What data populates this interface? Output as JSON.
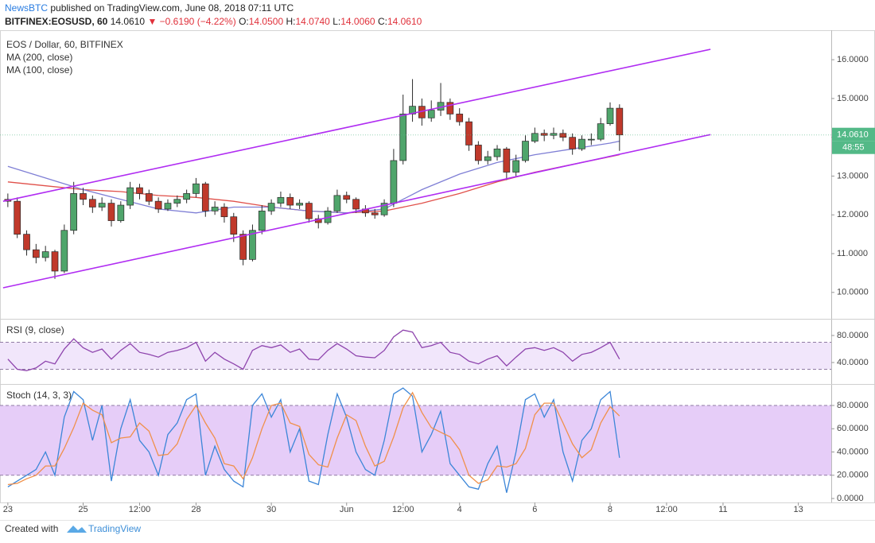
{
  "header": {
    "publisher": "NewsBTC",
    "published": "published on TradingView.com, June 08, 2018 07:11 UTC",
    "symbol": "BITFINEX:EOSUSD, 60",
    "price": "14.0610",
    "change": "▼ −0.6190 (−4.22%)",
    "ohlc": [
      {
        "label": "O:",
        "value": "14.0500"
      },
      {
        "label": "H:",
        "value": "14.0740"
      },
      {
        "label": "L:",
        "value": "14.0060"
      },
      {
        "label": "C:",
        "value": "14.0610"
      }
    ]
  },
  "footer": {
    "created_with": "Created with",
    "brand": "TradingView"
  },
  "chart_data": [
    {
      "type": "candlestick",
      "title": "EOS / Dollar, 60, BITFINEX",
      "x": [
        "2018-05-23T00:00",
        "2018-05-23T06:00",
        "2018-05-23T12:00",
        "2018-05-23T18:00",
        "2018-05-24T00:00",
        "2018-05-24T06:00",
        "2018-05-24T12:00",
        "2018-05-24T18:00",
        "2018-05-25T00:00",
        "2018-05-25T06:00",
        "2018-05-25T12:00",
        "2018-05-25T18:00",
        "2018-05-26T00:00",
        "2018-05-26T06:00",
        "2018-05-26T12:00",
        "2018-05-26T18:00",
        "2018-05-27T00:00",
        "2018-05-27T06:00",
        "2018-05-27T12:00",
        "2018-05-27T18:00",
        "2018-05-28T00:00",
        "2018-05-28T06:00",
        "2018-05-28T12:00",
        "2018-05-28T18:00",
        "2018-05-29T00:00",
        "2018-05-29T06:00",
        "2018-05-29T12:00",
        "2018-05-29T18:00",
        "2018-05-30T00:00",
        "2018-05-30T06:00",
        "2018-05-30T12:00",
        "2018-05-30T18:00",
        "2018-05-31T00:00",
        "2018-05-31T06:00",
        "2018-05-31T12:00",
        "2018-05-31T18:00",
        "2018-06-01T00:00",
        "2018-06-01T06:00",
        "2018-06-01T12:00",
        "2018-06-01T18:00",
        "2018-06-02T00:00",
        "2018-06-02T06:00",
        "2018-06-02T12:00",
        "2018-06-02T18:00",
        "2018-06-03T00:00",
        "2018-06-03T06:00",
        "2018-06-03T12:00",
        "2018-06-03T18:00",
        "2018-06-04T00:00",
        "2018-06-04T06:00",
        "2018-06-04T12:00",
        "2018-06-04T18:00",
        "2018-06-05T00:00",
        "2018-06-05T06:00",
        "2018-06-05T12:00",
        "2018-06-05T18:00",
        "2018-06-06T00:00",
        "2018-06-06T06:00",
        "2018-06-06T12:00",
        "2018-06-06T18:00",
        "2018-06-07T00:00",
        "2018-06-07T06:00",
        "2018-06-07T12:00",
        "2018-06-07T18:00",
        "2018-06-08T00:00",
        "2018-06-08T06:00"
      ],
      "open": [
        12.4,
        12.35,
        11.5,
        11.1,
        10.9,
        11.05,
        10.55,
        11.6,
        12.55,
        12.4,
        12.2,
        12.3,
        11.85,
        12.25,
        12.7,
        12.55,
        12.35,
        12.15,
        12.3,
        12.4,
        12.55,
        12.8,
        12.1,
        12.2,
        11.95,
        11.5,
        10.85,
        11.6,
        12.1,
        12.3,
        12.45,
        12.25,
        12.3,
        11.9,
        11.8,
        12.1,
        12.5,
        12.4,
        12.15,
        12.05,
        12.0,
        12.3,
        13.4,
        14.6,
        14.8,
        14.5,
        14.7,
        14.9,
        14.6,
        14.4,
        13.8,
        13.4,
        13.5,
        13.7,
        13.1,
        13.4,
        13.9,
        14.1,
        14.05,
        14.1,
        14.0,
        13.7,
        13.95,
        13.95,
        14.35,
        14.75
      ],
      "high": [
        12.55,
        12.45,
        11.6,
        11.25,
        11.2,
        11.1,
        11.75,
        12.85,
        12.7,
        12.5,
        12.45,
        12.4,
        12.35,
        12.85,
        12.8,
        12.65,
        12.45,
        12.4,
        12.5,
        12.65,
        12.95,
        12.85,
        12.35,
        12.3,
        12.05,
        11.6,
        11.75,
        12.25,
        12.4,
        12.6,
        12.55,
        12.4,
        12.35,
        12.0,
        12.2,
        12.65,
        12.6,
        12.45,
        12.25,
        12.15,
        12.4,
        13.7,
        15.1,
        15.5,
        15.0,
        14.95,
        15.4,
        15.0,
        14.75,
        14.5,
        13.9,
        13.65,
        13.8,
        13.75,
        13.55,
        14.05,
        14.25,
        14.2,
        14.25,
        14.2,
        14.1,
        14.05,
        14.1,
        14.5,
        14.9,
        14.85
      ],
      "low": [
        12.2,
        11.4,
        10.95,
        10.75,
        10.8,
        10.35,
        10.5,
        11.5,
        12.25,
        12.05,
        12.1,
        11.7,
        11.8,
        12.15,
        12.4,
        12.25,
        12.05,
        12.1,
        12.2,
        12.3,
        12.45,
        11.95,
        12.0,
        11.8,
        11.3,
        10.7,
        10.8,
        11.5,
        12.0,
        12.2,
        12.15,
        12.15,
        11.8,
        11.65,
        11.75,
        12.05,
        12.3,
        12.05,
        11.95,
        11.9,
        11.95,
        12.2,
        13.3,
        14.4,
        14.3,
        14.4,
        14.55,
        14.45,
        14.3,
        13.65,
        13.3,
        13.3,
        13.4,
        12.9,
        13.0,
        13.35,
        13.85,
        13.9,
        13.95,
        13.9,
        13.55,
        13.65,
        13.8,
        13.9,
        14.3,
        13.65
      ],
      "close": [
        12.35,
        11.5,
        11.1,
        10.9,
        11.05,
        10.55,
        11.6,
        12.55,
        12.4,
        12.2,
        12.3,
        11.85,
        12.25,
        12.7,
        12.55,
        12.35,
        12.15,
        12.3,
        12.4,
        12.55,
        12.8,
        12.1,
        12.2,
        11.95,
        11.5,
        10.85,
        11.6,
        12.1,
        12.3,
        12.45,
        12.25,
        12.3,
        11.9,
        11.8,
        12.1,
        12.5,
        12.4,
        12.15,
        12.05,
        12.0,
        12.3,
        13.4,
        14.6,
        14.8,
        14.5,
        14.7,
        14.9,
        14.6,
        14.4,
        13.8,
        13.4,
        13.5,
        13.7,
        13.1,
        13.4,
        13.9,
        14.1,
        14.05,
        14.1,
        14.0,
        13.7,
        13.95,
        13.95,
        14.35,
        14.75,
        14.061
      ],
      "up_color": "#4fa56b",
      "down_color": "#c0392b",
      "series": [
        {
          "name": "MA (200, close)",
          "color": "#e0504a",
          "x": [
            "2018-05-23T00:00",
            "2018-05-24T00:00",
            "2018-05-25T00:00",
            "2018-05-26T00:00",
            "2018-05-27T00:00",
            "2018-05-28T00:00",
            "2018-05-29T00:00",
            "2018-05-30T00:00",
            "2018-05-31T00:00",
            "2018-06-01T00:00",
            "2018-06-02T00:00",
            "2018-06-03T00:00",
            "2018-06-04T00:00",
            "2018-06-05T00:00",
            "2018-06-06T00:00",
            "2018-06-07T00:00",
            "2018-06-08T00:00",
            "2018-06-08T06:00"
          ],
          "values": [
            12.85,
            12.75,
            12.65,
            12.6,
            12.5,
            12.45,
            12.35,
            12.2,
            12.1,
            12.05,
            12.1,
            12.3,
            12.55,
            12.85,
            13.1,
            13.3,
            13.5,
            13.55
          ]
        },
        {
          "name": "MA (100, close)",
          "color": "#7f7fd5",
          "x": [
            "2018-05-23T00:00",
            "2018-05-24T00:00",
            "2018-05-25T00:00",
            "2018-05-26T00:00",
            "2018-05-27T00:00",
            "2018-05-28T00:00",
            "2018-05-29T00:00",
            "2018-05-30T00:00",
            "2018-05-31T00:00",
            "2018-06-01T00:00",
            "2018-06-02T00:00",
            "2018-06-03T00:00",
            "2018-06-04T00:00",
            "2018-06-05T00:00",
            "2018-06-06T00:00",
            "2018-06-07T00:00",
            "2018-06-08T00:00",
            "2018-06-08T06:00"
          ],
          "values": [
            13.25,
            12.95,
            12.65,
            12.4,
            12.15,
            12.05,
            12.2,
            12.2,
            12.1,
            12.05,
            12.15,
            12.65,
            13.05,
            13.35,
            13.55,
            13.7,
            13.85,
            13.9
          ]
        }
      ],
      "channels": [
        {
          "color": "#b02cf2",
          "x": [
            "2018-05-22T21:00",
            "2018-06-10T16:00"
          ],
          "values": [
            12.35,
            16.27
          ]
        },
        {
          "color": "#b02cf2",
          "x": [
            "2018-05-22T21:00",
            "2018-06-10T16:00"
          ],
          "values": [
            10.12,
            14.07
          ]
        }
      ],
      "last_price": {
        "value": 14.061,
        "label": "14.0610"
      },
      "countdown": "48:55",
      "label_color": "#53b987",
      "xlim": [
        "2018-05-22T19:00",
        "2018-06-13T21:00"
      ],
      "ylim": [
        9.34,
        16.72
      ],
      "yticks": [
        {
          "value": 10,
          "label": "10.0000"
        },
        {
          "value": 11,
          "label": "11.0000"
        },
        {
          "value": 12,
          "label": "12.0000"
        },
        {
          "value": 13,
          "label": "13.0000"
        },
        {
          "value": 14,
          "label": "14.0000"
        },
        {
          "value": 15,
          "label": "15.0000"
        },
        {
          "value": 16,
          "label": "16.0000"
        }
      ]
    },
    {
      "type": "line",
      "title": "RSI (9, close)",
      "x": [
        "2018-05-23T00:00",
        "2018-05-23T06:00",
        "2018-05-23T12:00",
        "2018-05-23T18:00",
        "2018-05-24T00:00",
        "2018-05-24T06:00",
        "2018-05-24T12:00",
        "2018-05-24T18:00",
        "2018-05-25T00:00",
        "2018-05-25T06:00",
        "2018-05-25T12:00",
        "2018-05-25T18:00",
        "2018-05-26T00:00",
        "2018-05-26T06:00",
        "2018-05-26T12:00",
        "2018-05-26T18:00",
        "2018-05-27T00:00",
        "2018-05-27T06:00",
        "2018-05-27T12:00",
        "2018-05-27T18:00",
        "2018-05-28T00:00",
        "2018-05-28T06:00",
        "2018-05-28T12:00",
        "2018-05-28T18:00",
        "2018-05-29T00:00",
        "2018-05-29T06:00",
        "2018-05-29T12:00",
        "2018-05-29T18:00",
        "2018-05-30T00:00",
        "2018-05-30T06:00",
        "2018-05-30T12:00",
        "2018-05-30T18:00",
        "2018-05-31T00:00",
        "2018-05-31T06:00",
        "2018-05-31T12:00",
        "2018-05-31T18:00",
        "2018-06-01T00:00",
        "2018-06-01T06:00",
        "2018-06-01T12:00",
        "2018-06-01T18:00",
        "2018-06-02T00:00",
        "2018-06-02T06:00",
        "2018-06-02T12:00",
        "2018-06-02T18:00",
        "2018-06-03T00:00",
        "2018-06-03T06:00",
        "2018-06-03T12:00",
        "2018-06-03T18:00",
        "2018-06-04T00:00",
        "2018-06-04T06:00",
        "2018-06-04T12:00",
        "2018-06-04T18:00",
        "2018-06-05T00:00",
        "2018-06-05T06:00",
        "2018-06-05T12:00",
        "2018-06-05T18:00",
        "2018-06-06T00:00",
        "2018-06-06T06:00",
        "2018-06-06T12:00",
        "2018-06-06T18:00",
        "2018-06-07T00:00",
        "2018-06-07T06:00",
        "2018-06-07T12:00",
        "2018-06-07T18:00",
        "2018-06-08T00:00",
        "2018-06-08T06:00"
      ],
      "series": [
        {
          "color": "#8e44ad",
          "values": [
            45,
            30,
            28,
            32,
            42,
            38,
            60,
            75,
            62,
            55,
            60,
            45,
            58,
            68,
            55,
            52,
            48,
            55,
            58,
            62,
            70,
            42,
            55,
            45,
            38,
            30,
            58,
            65,
            62,
            66,
            55,
            60,
            45,
            44,
            58,
            68,
            60,
            50,
            48,
            47,
            58,
            78,
            88,
            85,
            62,
            65,
            70,
            55,
            52,
            42,
            38,
            45,
            50,
            35,
            48,
            60,
            62,
            58,
            62,
            55,
            42,
            52,
            55,
            62,
            70,
            45
          ]
        }
      ],
      "band": [
        30,
        70
      ],
      "band_color": "#f1e6fb",
      "xlim": [
        "2018-05-22T19:00",
        "2018-06-13T21:00"
      ],
      "ylim": [
        9.4,
        103.5
      ],
      "yticks": [
        {
          "value": 40,
          "label": "40.0000"
        },
        {
          "value": 80,
          "label": "80.0000"
        }
      ]
    },
    {
      "type": "line",
      "title": "Stoch (14, 3, 3)",
      "x": [
        "2018-05-23T00:00",
        "2018-05-23T06:00",
        "2018-05-23T12:00",
        "2018-05-23T18:00",
        "2018-05-24T00:00",
        "2018-05-24T06:00",
        "2018-05-24T12:00",
        "2018-05-24T18:00",
        "2018-05-25T00:00",
        "2018-05-25T06:00",
        "2018-05-25T12:00",
        "2018-05-25T18:00",
        "2018-05-26T00:00",
        "2018-05-26T06:00",
        "2018-05-26T12:00",
        "2018-05-26T18:00",
        "2018-05-27T00:00",
        "2018-05-27T06:00",
        "2018-05-27T12:00",
        "2018-05-27T18:00",
        "2018-05-28T00:00",
        "2018-05-28T06:00",
        "2018-05-28T12:00",
        "2018-05-28T18:00",
        "2018-05-29T00:00",
        "2018-05-29T06:00",
        "2018-05-29T12:00",
        "2018-05-29T18:00",
        "2018-05-30T00:00",
        "2018-05-30T06:00",
        "2018-05-30T12:00",
        "2018-05-30T18:00",
        "2018-05-31T00:00",
        "2018-05-31T06:00",
        "2018-05-31T12:00",
        "2018-05-31T18:00",
        "2018-06-01T00:00",
        "2018-06-01T06:00",
        "2018-06-01T12:00",
        "2018-06-01T18:00",
        "2018-06-02T00:00",
        "2018-06-02T06:00",
        "2018-06-02T12:00",
        "2018-06-02T18:00",
        "2018-06-03T00:00",
        "2018-06-03T06:00",
        "2018-06-03T12:00",
        "2018-06-03T18:00",
        "2018-06-04T00:00",
        "2018-06-04T06:00",
        "2018-06-04T12:00",
        "2018-06-04T18:00",
        "2018-06-05T00:00",
        "2018-06-05T06:00",
        "2018-06-05T12:00",
        "2018-06-05T18:00",
        "2018-06-06T00:00",
        "2018-06-06T06:00",
        "2018-06-06T12:00",
        "2018-06-06T18:00",
        "2018-06-07T00:00",
        "2018-06-07T06:00",
        "2018-06-07T12:00",
        "2018-06-07T18:00",
        "2018-06-08T00:00",
        "2018-06-08T06:00"
      ],
      "series": [
        {
          "color": "#3c86d8",
          "values": [
            10,
            15,
            20,
            25,
            40,
            20,
            70,
            92,
            85,
            50,
            80,
            15,
            60,
            85,
            50,
            40,
            20,
            55,
            65,
            85,
            90,
            20,
            45,
            25,
            15,
            10,
            80,
            90,
            70,
            85,
            40,
            60,
            15,
            12,
            55,
            90,
            70,
            40,
            25,
            20,
            50,
            90,
            95,
            88,
            40,
            55,
            75,
            30,
            20,
            10,
            8,
            30,
            45,
            5,
            40,
            85,
            90,
            70,
            85,
            40,
            15,
            50,
            60,
            85,
            92,
            35
          ]
        },
        {
          "color": "#f0904a",
          "values": [
            12,
            13,
            17,
            20,
            28,
            28,
            43,
            61,
            82,
            76,
            72,
            48,
            52,
            53,
            65,
            58,
            37,
            38,
            47,
            68,
            80,
            65,
            52,
            30,
            28,
            17,
            35,
            60,
            80,
            82,
            65,
            62,
            38,
            29,
            27,
            52,
            72,
            67,
            45,
            28,
            32,
            53,
            78,
            91,
            74,
            61,
            57,
            53,
            42,
            20,
            13,
            16,
            28,
            27,
            30,
            43,
            72,
            82,
            82,
            65,
            47,
            35,
            42,
            65,
            79,
            71
          ]
        }
      ],
      "band": [
        20,
        80
      ],
      "band_color": "#e6cdf8",
      "xlim": [
        "2018-05-22T19:00",
        "2018-06-13T21:00"
      ],
      "ylim": [
        -3.4,
        97.8
      ],
      "yticks": [
        {
          "value": 0,
          "label": "0.0000"
        },
        {
          "value": 20,
          "label": "20.0000"
        },
        {
          "value": 40,
          "label": "40.0000"
        },
        {
          "value": 60,
          "label": "60.0000"
        },
        {
          "value": 80,
          "label": "80.0000"
        }
      ],
      "xticks": [
        {
          "value": "2018-05-23T00:00",
          "label": "23"
        },
        {
          "value": "2018-05-25T00:00",
          "label": "25"
        },
        {
          "value": "2018-05-26T12:00",
          "label": "12:00"
        },
        {
          "value": "2018-05-28T00:00",
          "label": "28"
        },
        {
          "value": "2018-05-30T00:00",
          "label": "30"
        },
        {
          "value": "2018-06-01T00:00",
          "label": "Jun"
        },
        {
          "value": "2018-06-02T12:00",
          "label": "12:00"
        },
        {
          "value": "2018-06-04T00:00",
          "label": "4"
        },
        {
          "value": "2018-06-06T00:00",
          "label": "6"
        },
        {
          "value": "2018-06-08T00:00",
          "label": "8"
        },
        {
          "value": "2018-06-09T12:00",
          "label": "12:00"
        },
        {
          "value": "2018-06-11T00:00",
          "label": "11"
        },
        {
          "value": "2018-06-13T00:00",
          "label": "13"
        }
      ]
    }
  ]
}
